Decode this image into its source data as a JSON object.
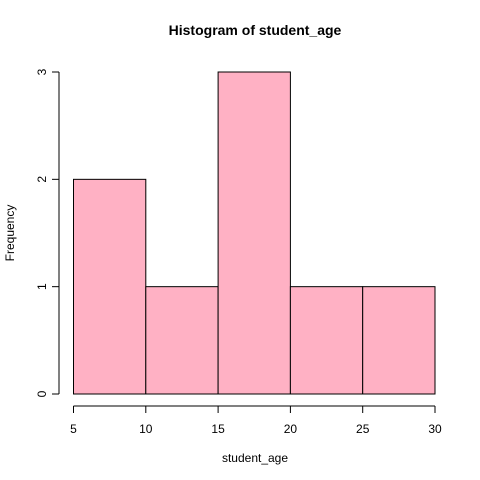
{
  "chart_data": {
    "type": "bar",
    "title": "Histogram of student_age",
    "xlabel": "student_age",
    "ylabel": "Frequency",
    "bins": [
      {
        "start": 5,
        "end": 10,
        "count": 2
      },
      {
        "start": 10,
        "end": 15,
        "count": 1
      },
      {
        "start": 15,
        "end": 20,
        "count": 3
      },
      {
        "start": 20,
        "end": 25,
        "count": 1
      },
      {
        "start": 25,
        "end": 30,
        "count": 1
      }
    ],
    "xlim": [
      5,
      30
    ],
    "ylim": [
      0,
      3
    ],
    "x_ticks": [
      "5",
      "10",
      "15",
      "20",
      "25",
      "30"
    ],
    "y_ticks": [
      "0",
      "1",
      "2",
      "3"
    ],
    "bar_color": "#ffb1c4",
    "grid": false
  }
}
